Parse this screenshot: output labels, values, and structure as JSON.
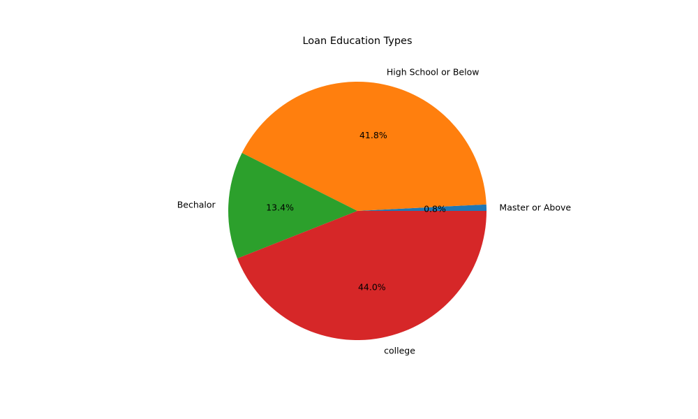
{
  "chart_data": {
    "type": "pie",
    "title": "Loan Education Types",
    "slices": [
      {
        "label": "Master or Above",
        "value": 0.8,
        "pct_label": "0.8%",
        "color": "#1f77b4"
      },
      {
        "label": "High School or Below",
        "value": 41.8,
        "pct_label": "41.8%",
        "color": "#ff7f0e"
      },
      {
        "label": "Bechalor",
        "value": 13.4,
        "pct_label": "13.4%",
        "color": "#2ca02c"
      },
      {
        "label": "college",
        "value": 44.0,
        "pct_label": "44.0%",
        "color": "#d62728"
      }
    ],
    "start_angle_deg": 0,
    "direction": "counterclockwise"
  }
}
